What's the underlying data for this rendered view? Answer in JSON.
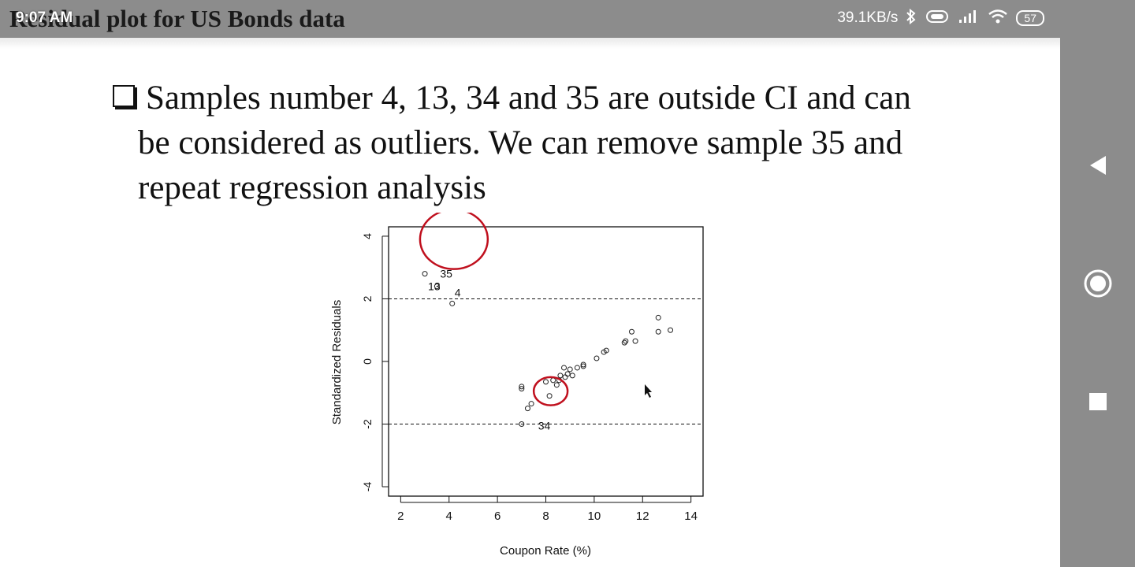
{
  "status": {
    "time": "9:07 AM",
    "speed": "39.1KB/s",
    "battery": "57"
  },
  "slide": {
    "title": "Residual plot for US Bonds data",
    "bullet_line1": "Samples number 4, 13, 34 and 35 are outside CI and can",
    "bullet_line2": "be considered as outliers.  We can remove sample 35 and",
    "bullet_line3": "repeat regression analysis"
  },
  "icons": {
    "bullet": "square-bullet-icon",
    "back": "back-triangle-icon",
    "home": "home-circle-icon",
    "recents": "recents-square-icon",
    "bluetooth": "bluetooth-icon",
    "vibrate": "vibrate-icon",
    "signal": "signal-icon",
    "wifi": "wifi-icon"
  },
  "colors": {
    "annotation": "#c0101e",
    "points": "#222222",
    "bars": "#8c8c8c"
  },
  "chart_data": {
    "type": "scatter",
    "xlabel": "Coupon Rate (%)",
    "ylabel": "Standardized Residuals",
    "xlim": [
      1.5,
      14.5
    ],
    "ylim": [
      -4.3,
      4.3
    ],
    "xticks": [
      2,
      4,
      6,
      8,
      10,
      12,
      14
    ],
    "yticks": [
      -4,
      -2,
      0,
      2,
      4
    ],
    "reference_lines": [
      2,
      -2
    ],
    "labels": [
      {
        "text": "35",
        "x": 3.5,
        "y": 2.8
      },
      {
        "text": "13",
        "x": 3.0,
        "y": 2.4
      },
      {
        "text": "4",
        "x": 4.1,
        "y": 2.2
      },
      {
        "text": "34",
        "x": 7.55,
        "y": -2.05
      }
    ],
    "points": [
      {
        "x": 3.0,
        "y": 2.8
      },
      {
        "x": 3.5,
        "y": 2.4
      },
      {
        "x": 4.13,
        "y": 1.85
      },
      {
        "x": 7.0,
        "y": -2.0
      },
      {
        "x": 7.0,
        "y": -0.8
      },
      {
        "x": 7.0,
        "y": -0.87
      },
      {
        "x": 7.25,
        "y": -1.5
      },
      {
        "x": 7.4,
        "y": -1.35
      },
      {
        "x": 8.0,
        "y": -0.65
      },
      {
        "x": 8.15,
        "y": -1.1
      },
      {
        "x": 8.3,
        "y": -0.6
      },
      {
        "x": 8.45,
        "y": -0.75
      },
      {
        "x": 8.55,
        "y": -0.6
      },
      {
        "x": 8.6,
        "y": -0.45
      },
      {
        "x": 8.75,
        "y": -0.2
      },
      {
        "x": 8.8,
        "y": -0.5
      },
      {
        "x": 8.9,
        "y": -0.4
      },
      {
        "x": 9.0,
        "y": -0.25
      },
      {
        "x": 9.1,
        "y": -0.45
      },
      {
        "x": 9.3,
        "y": -0.2
      },
      {
        "x": 9.55,
        "y": -0.1
      },
      {
        "x": 9.55,
        "y": -0.15
      },
      {
        "x": 10.1,
        "y": 0.1
      },
      {
        "x": 10.4,
        "y": 0.3
      },
      {
        "x": 10.5,
        "y": 0.35
      },
      {
        "x": 11.25,
        "y": 0.6
      },
      {
        "x": 11.3,
        "y": 0.65
      },
      {
        "x": 11.55,
        "y": 0.95
      },
      {
        "x": 11.7,
        "y": 0.65
      },
      {
        "x": 12.65,
        "y": 1.4
      },
      {
        "x": 12.65,
        "y": 0.95
      },
      {
        "x": 13.15,
        "y": 1.0
      }
    ],
    "annotations": [
      {
        "shape": "circle",
        "cx": 4.2,
        "cy": 3.9,
        "rx": 1.4,
        "ry": 0.95
      },
      {
        "shape": "circle",
        "cx": 8.2,
        "cy": -0.95,
        "rx": 0.7,
        "ry": 0.45
      }
    ]
  }
}
